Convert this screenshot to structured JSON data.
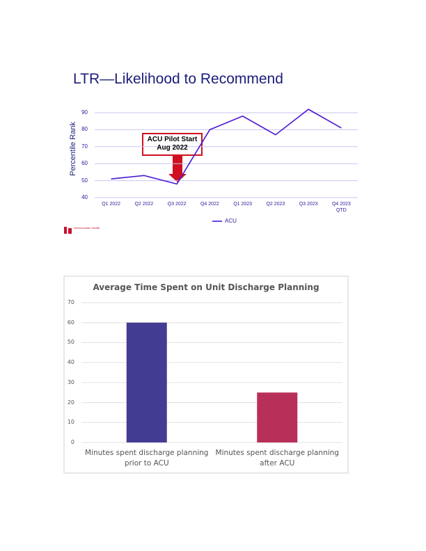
{
  "logo": "Intermountain Health",
  "chart_data": [
    {
      "type": "line",
      "title": "LTR—Likelihood to Recommend",
      "y_label": "Percentile Rank",
      "categories": [
        "Q1 2022",
        "Q2 2022",
        "Q3 2022",
        "Q4 2022",
        "Q1 2023",
        "Q2 2023",
        "Q3 2023",
        "Q4 2023\nQTD"
      ],
      "series": [
        {
          "name": "ACU",
          "color": "#4a17d1",
          "values": [
            51,
            53,
            48,
            80,
            88,
            77,
            92,
            81
          ]
        }
      ],
      "ylim": [
        40,
        95
      ],
      "yticks": [
        40,
        50,
        60,
        70,
        80,
        90
      ],
      "grid": true,
      "legend": "bottom",
      "annotation": "ACU Pilot Start\nAug 2022"
    },
    {
      "type": "bar",
      "title": "Average Time Spent on Unit Discharge Planning",
      "categories": [
        "Minutes spent discharge planning prior to ACU",
        "Minutes spent discharge planning after ACU"
      ],
      "values": [
        60,
        25
      ],
      "colors": [
        "#433c93",
        "#b8305a"
      ],
      "ylim": [
        0,
        70
      ],
      "yticks": [
        0,
        10,
        20,
        30,
        40,
        50,
        60,
        70
      ],
      "grid": true
    }
  ]
}
